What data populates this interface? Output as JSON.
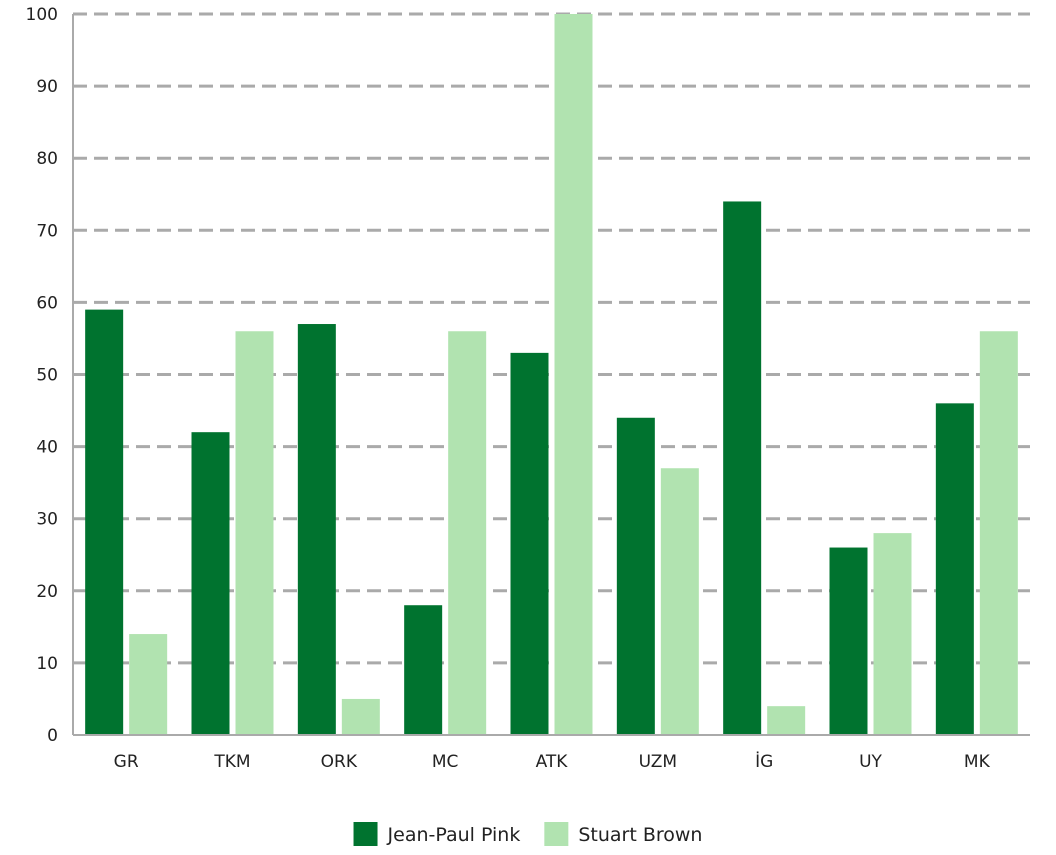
{
  "chart_data": {
    "type": "bar",
    "title": "",
    "xlabel": "",
    "ylabel": "",
    "categories": [
      "GR",
      "TKM",
      "ORK",
      "MC",
      "ATK",
      "UZM",
      "İG",
      "UY",
      "MK"
    ],
    "series": [
      {
        "name": "Jean-Paul Pink",
        "color": "#00732f",
        "values": [
          59,
          42,
          57,
          18,
          53,
          44,
          74,
          26,
          46
        ]
      },
      {
        "name": "Stuart Brown",
        "color": "#b1e3b0",
        "values": [
          14,
          56,
          5,
          56,
          100,
          37,
          4,
          28,
          56
        ]
      }
    ],
    "ylim": [
      0,
      100
    ],
    "yticks": [
      0,
      10,
      20,
      30,
      40,
      50,
      60,
      70,
      80,
      90,
      100
    ],
    "grid": true,
    "grid_style": "dashed",
    "legend_position": "bottom-center"
  }
}
